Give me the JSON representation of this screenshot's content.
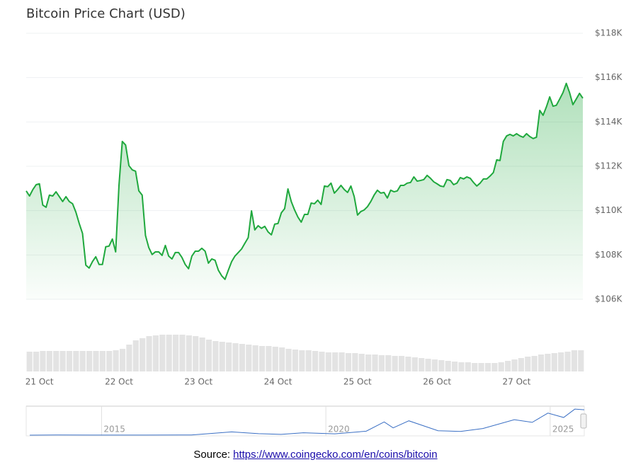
{
  "chart_data": [
    {
      "type": "area",
      "title": "Bitcoin Price Chart (USD)",
      "categories": [
        null,
        null,
        null,
        null,
        "21 Oct",
        null,
        null,
        null,
        null,
        null,
        null,
        null,
        null,
        null,
        null,
        null,
        null,
        null,
        null,
        null,
        null,
        null,
        null,
        null,
        null,
        null,
        null,
        null,
        "22 Oct",
        null,
        null,
        null,
        null,
        null,
        null,
        null,
        null,
        null,
        null,
        null,
        null,
        null,
        null,
        null,
        null,
        null,
        null,
        null,
        null,
        null,
        null,
        null,
        "23 Oct",
        null,
        null,
        null,
        null,
        null,
        null,
        null,
        null,
        null,
        null,
        null,
        null,
        null,
        null,
        null,
        null,
        null,
        null,
        null,
        null,
        null,
        null,
        null,
        "24 Oct",
        null,
        null,
        null,
        null,
        null,
        null,
        null,
        null,
        null,
        null,
        null,
        null,
        null,
        null,
        null,
        null,
        null,
        null,
        null,
        null,
        null,
        null,
        null,
        "25 Oct",
        null,
        null,
        null,
        null,
        null,
        null,
        null,
        null,
        null,
        null,
        null,
        null,
        null,
        null,
        null,
        null,
        null,
        null,
        null,
        null,
        null,
        null,
        null,
        "26 Oct",
        null,
        null,
        null,
        null,
        null,
        null,
        null,
        null,
        null,
        null,
        null,
        null,
        null,
        null,
        null,
        null,
        null,
        null,
        null,
        null,
        null,
        null,
        null,
        "27 Oct",
        null,
        null,
        null,
        null,
        null,
        null,
        null,
        null,
        null,
        null,
        null,
        null,
        null,
        null,
        null,
        null,
        null,
        null,
        null,
        null
      ],
      "values": [
        110890,
        110660,
        110950,
        111170,
        111210,
        110250,
        110150,
        110700,
        110660,
        110850,
        110630,
        110410,
        110630,
        110410,
        110310,
        109930,
        109420,
        108970,
        107540,
        107410,
        107700,
        107920,
        107570,
        107570,
        108370,
        108400,
        108720,
        108140,
        111140,
        113120,
        112960,
        112030,
        111840,
        111780,
        110890,
        110700,
        108880,
        108330,
        108020,
        108140,
        108140,
        107980,
        108430,
        107950,
        107820,
        108110,
        108110,
        107890,
        107570,
        107380,
        107950,
        108170,
        108170,
        108300,
        108170,
        107630,
        107820,
        107760,
        107310,
        107060,
        106900,
        107310,
        107700,
        107950,
        108110,
        108270,
        108530,
        108780,
        109990,
        109130,
        109320,
        109200,
        109290,
        109040,
        108910,
        109390,
        109420,
        109900,
        110090,
        110980,
        110410,
        110030,
        109710,
        109480,
        109830,
        109830,
        110340,
        110310,
        110470,
        110280,
        111110,
        111080,
        111240,
        110790,
        110950,
        111140,
        110950,
        110820,
        111110,
        110630,
        109800,
        109960,
        110030,
        110180,
        110410,
        110700,
        110920,
        110790,
        110820,
        110570,
        110920,
        110850,
        110890,
        111140,
        111140,
        111240,
        111270,
        111520,
        111330,
        111360,
        111400,
        111590,
        111460,
        111300,
        111210,
        111110,
        111080,
        111400,
        111360,
        111170,
        111240,
        111490,
        111430,
        111520,
        111460,
        111270,
        111110,
        111240,
        111430,
        111430,
        111560,
        111720,
        112290,
        112260,
        113120,
        113370,
        113440,
        113370,
        113470,
        113370,
        113310,
        113470,
        113340,
        113250,
        113310,
        114520,
        114300,
        114680,
        115130,
        114710,
        114750,
        115030,
        115320,
        115740,
        115320,
        114780,
        115030,
        115290,
        115070
      ],
      "color": "#1fa83d",
      "ylim": [
        106000,
        118000
      ],
      "yticks": [
        {
          "value": 106000,
          "label": "$106K"
        },
        {
          "value": 108000,
          "label": "$108K"
        },
        {
          "value": 110000,
          "label": "$110K"
        },
        {
          "value": 112000,
          "label": "$112K"
        },
        {
          "value": 114000,
          "label": "$114K"
        },
        {
          "value": 116000,
          "label": "$116K"
        },
        {
          "value": 118000,
          "label": "$118K"
        }
      ],
      "grid": true
    },
    {
      "type": "bar",
      "values": [
        28,
        28,
        29,
        29,
        29,
        29,
        29,
        29,
        29,
        29,
        29,
        29,
        29,
        30,
        32,
        38,
        44,
        47,
        50,
        51,
        52,
        52,
        52,
        52,
        51,
        50,
        48,
        45,
        43,
        42,
        41,
        40,
        39,
        38,
        37,
        36,
        36,
        35,
        34,
        32,
        31,
        30,
        30,
        29,
        28,
        27,
        27,
        27,
        26,
        26,
        25,
        24,
        24,
        23,
        23,
        22,
        22,
        21,
        20,
        19,
        18,
        17,
        16,
        15,
        14,
        13,
        13,
        12,
        12,
        12,
        12,
        13,
        15,
        17,
        19,
        21,
        22,
        24,
        25,
        26,
        27,
        28,
        30,
        30
      ],
      "color": "#e3e3e3",
      "ylim": [
        0,
        60
      ]
    },
    {
      "type": "line",
      "x": [
        2013.4,
        2014,
        2015,
        2016,
        2017,
        2017.9,
        2018.5,
        2019,
        2019.5,
        2020.2,
        2020.9,
        2021.3,
        2021.5,
        2021.85,
        2022.5,
        2023,
        2023.5,
        2024.2,
        2024.6,
        2024.95,
        2025.3,
        2025.55,
        2025.76
      ],
      "values": [
        100,
        800,
        300,
        400,
        1000,
        15000,
        7000,
        3700,
        11000,
        6000,
        18000,
        60000,
        33000,
        65000,
        20000,
        17000,
        30000,
        70000,
        58000,
        100000,
        80000,
        118000,
        115000
      ],
      "color": "#3a6fc4",
      "xlim": [
        2013.32,
        2025.76
      ],
      "ylim": [
        0,
        125000
      ],
      "xticks": [
        2015,
        2020,
        2025
      ]
    }
  ],
  "source": {
    "label": "Source:",
    "link": "https://www.coingecko.com/en/coins/bitcoin"
  }
}
